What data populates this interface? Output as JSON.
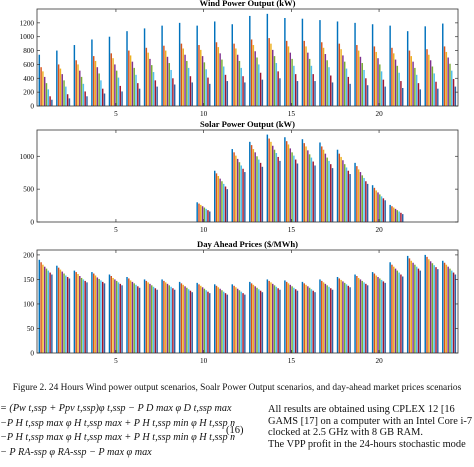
{
  "figure": {
    "caption": "Figure 2.   24 Hours Wind power output scenarios, Soalr Power Output scenarios, and day-ahead market prices scenarios"
  },
  "chart_data": [
    {
      "type": "bar",
      "title": "Wind Power Output (kW)",
      "xlabel": "",
      "ylabel": "",
      "ylim": [
        0,
        1400
      ],
      "xlim": [
        0.5,
        24.5
      ],
      "yticks": [
        0,
        200,
        400,
        600,
        800,
        1000,
        1200
      ],
      "xticks": [
        5,
        10,
        15,
        20
      ],
      "categories": [
        1,
        2,
        3,
        4,
        5,
        6,
        7,
        8,
        9,
        10,
        11,
        12,
        13,
        14,
        15,
        16,
        17,
        18,
        19,
        20,
        21,
        22,
        23,
        24
      ],
      "series": [
        {
          "color": "#0072BD",
          "values": [
            740,
            800,
            880,
            960,
            1000,
            1080,
            1120,
            1160,
            1200,
            1160,
            1220,
            1180,
            1300,
            1330,
            1270,
            1260,
            1240,
            1220,
            1200,
            1180,
            1160,
            1080,
            1150,
            1190
          ]
        },
        {
          "color": "#D95319",
          "values": [
            560,
            600,
            660,
            720,
            760,
            800,
            840,
            870,
            900,
            880,
            920,
            900,
            960,
            980,
            940,
            940,
            920,
            900,
            880,
            860,
            840,
            800,
            820,
            860
          ]
        },
        {
          "color": "#EDB120",
          "values": [
            500,
            540,
            600,
            650,
            690,
            730,
            770,
            800,
            830,
            810,
            850,
            830,
            880,
            900,
            860,
            860,
            840,
            820,
            800,
            780,
            760,
            720,
            740,
            780
          ]
        },
        {
          "color": "#7E2F8E",
          "values": [
            420,
            460,
            510,
            560,
            600,
            640,
            680,
            710,
            740,
            720,
            760,
            740,
            790,
            810,
            770,
            770,
            750,
            730,
            710,
            690,
            670,
            640,
            660,
            700
          ]
        },
        {
          "color": "#77AC30",
          "values": [
            330,
            370,
            420,
            470,
            510,
            550,
            590,
            620,
            650,
            630,
            670,
            650,
            700,
            720,
            680,
            680,
            660,
            640,
            620,
            600,
            580,
            550,
            570,
            610
          ]
        },
        {
          "color": "#4DBEEE",
          "values": [
            240,
            280,
            320,
            370,
            410,
            450,
            490,
            520,
            550,
            530,
            570,
            550,
            600,
            620,
            580,
            580,
            560,
            540,
            520,
            500,
            480,
            450,
            470,
            510
          ]
        },
        {
          "color": "#A2142F",
          "values": [
            140,
            170,
            210,
            250,
            290,
            330,
            370,
            400,
            430,
            410,
            450,
            430,
            480,
            500,
            460,
            460,
            440,
            420,
            400,
            380,
            360,
            330,
            350,
            390
          ]
        },
        {
          "color": "#2b63a8",
          "values": [
            90,
            110,
            140,
            180,
            210,
            250,
            280,
            310,
            340,
            320,
            360,
            340,
            380,
            400,
            360,
            360,
            340,
            320,
            300,
            280,
            260,
            240,
            250,
            280
          ]
        }
      ]
    },
    {
      "type": "bar",
      "title": "Solar Power Output (kW)",
      "xlabel": "",
      "ylabel": "",
      "ylim": [
        0,
        1400
      ],
      "xlim": [
        0.5,
        24.5
      ],
      "yticks": [
        0,
        500,
        1000
      ],
      "xticks": [
        5,
        10,
        15,
        20
      ],
      "categories": [
        1,
        2,
        3,
        4,
        5,
        6,
        7,
        8,
        9,
        10,
        11,
        12,
        13,
        14,
        15,
        16,
        17,
        18,
        19,
        20,
        21,
        22,
        23,
        24
      ],
      "series": [
        {
          "color": "#0072BD",
          "values": [
            0,
            0,
            0,
            0,
            0,
            0,
            0,
            0,
            0,
            300,
            780,
            1110,
            1220,
            1330,
            1290,
            1260,
            1210,
            1100,
            900,
            560,
            260,
            0,
            0,
            0
          ]
        },
        {
          "color": "#D95319",
          "values": [
            0,
            0,
            0,
            0,
            0,
            0,
            0,
            0,
            0,
            280,
            740,
            1060,
            1170,
            1270,
            1230,
            1200,
            1150,
            1040,
            850,
            520,
            240,
            0,
            0,
            0
          ]
        },
        {
          "color": "#EDB120",
          "values": [
            0,
            0,
            0,
            0,
            0,
            0,
            0,
            0,
            0,
            260,
            700,
            1010,
            1110,
            1220,
            1180,
            1150,
            1100,
            990,
            800,
            480,
            220,
            0,
            0,
            0
          ]
        },
        {
          "color": "#7E2F8E",
          "values": [
            0,
            0,
            0,
            0,
            0,
            0,
            0,
            0,
            0,
            240,
            660,
            960,
            1060,
            1160,
            1120,
            1090,
            1040,
            940,
            760,
            450,
            200,
            0,
            0,
            0
          ]
        },
        {
          "color": "#77AC30",
          "values": [
            0,
            0,
            0,
            0,
            0,
            0,
            0,
            0,
            0,
            220,
            620,
            910,
            1000,
            1100,
            1060,
            1030,
            980,
            880,
            710,
            420,
            180,
            0,
            0,
            0
          ]
        },
        {
          "color": "#4DBEEE",
          "values": [
            0,
            0,
            0,
            0,
            0,
            0,
            0,
            0,
            0,
            200,
            580,
            860,
            950,
            1050,
            1010,
            980,
            930,
            830,
            670,
            390,
            160,
            0,
            0,
            0
          ]
        },
        {
          "color": "#A2142F",
          "values": [
            0,
            0,
            0,
            0,
            0,
            0,
            0,
            0,
            0,
            180,
            540,
            810,
            900,
            990,
            950,
            920,
            880,
            780,
            620,
            360,
            140,
            0,
            0,
            0
          ]
        },
        {
          "color": "#2b63a8",
          "values": [
            0,
            0,
            0,
            0,
            0,
            0,
            0,
            0,
            0,
            160,
            500,
            760,
            840,
            930,
            890,
            860,
            820,
            730,
            580,
            330,
            120,
            0,
            0,
            0
          ]
        }
      ]
    },
    {
      "type": "bar",
      "title": "Day Ahead Prices ($/MWh)",
      "xlabel": "",
      "ylabel": "",
      "ylim": [
        0,
        210
      ],
      "xlim": [
        0.5,
        24.5
      ],
      "yticks": [
        0,
        50,
        100,
        150,
        200
      ],
      "xticks": [
        5,
        10,
        15,
        20
      ],
      "categories": [
        1,
        2,
        3,
        4,
        5,
        6,
        7,
        8,
        9,
        10,
        11,
        12,
        13,
        14,
        15,
        16,
        17,
        18,
        19,
        20,
        21,
        22,
        23,
        24
      ],
      "series": [
        {
          "color": "#0072BD",
          "values": [
            190,
            178,
            168,
            165,
            160,
            155,
            150,
            150,
            145,
            143,
            140,
            140,
            145,
            150,
            148,
            145,
            150,
            155,
            160,
            165,
            185,
            198,
            200,
            188
          ]
        },
        {
          "color": "#D95319",
          "values": [
            185,
            174,
            165,
            162,
            157,
            152,
            147,
            147,
            142,
            140,
            137,
            137,
            142,
            147,
            145,
            142,
            147,
            152,
            157,
            162,
            180,
            193,
            196,
            184
          ]
        },
        {
          "color": "#EDB120",
          "values": [
            180,
            170,
            161,
            158,
            153,
            148,
            144,
            144,
            139,
            137,
            134,
            134,
            139,
            144,
            142,
            139,
            144,
            149,
            153,
            158,
            176,
            188,
            191,
            180
          ]
        },
        {
          "color": "#7E2F8E",
          "values": [
            176,
            166,
            157,
            154,
            150,
            145,
            141,
            141,
            136,
            134,
            131,
            131,
            136,
            141,
            139,
            136,
            141,
            146,
            150,
            155,
            172,
            184,
            187,
            176
          ]
        },
        {
          "color": "#77AC30",
          "values": [
            172,
            162,
            153,
            151,
            147,
            142,
            138,
            138,
            133,
            131,
            128,
            128,
            133,
            138,
            136,
            133,
            138,
            143,
            147,
            152,
            168,
            180,
            183,
            172
          ]
        },
        {
          "color": "#4DBEEE",
          "values": [
            168,
            158,
            150,
            148,
            144,
            139,
            135,
            135,
            130,
            128,
            125,
            125,
            130,
            135,
            133,
            130,
            135,
            140,
            144,
            149,
            164,
            176,
            179,
            168
          ]
        },
        {
          "color": "#A2142F",
          "values": [
            164,
            155,
            147,
            145,
            141,
            136,
            132,
            132,
            127,
            125,
            122,
            122,
            127,
            132,
            130,
            127,
            132,
            137,
            141,
            146,
            160,
            172,
            175,
            164
          ]
        },
        {
          "color": "#2b63a8",
          "values": [
            160,
            152,
            144,
            142,
            138,
            133,
            129,
            129,
            124,
            122,
            119,
            119,
            124,
            129,
            127,
            124,
            129,
            134,
            138,
            143,
            156,
            168,
            171,
            160
          ]
        }
      ]
    }
  ],
  "equation": {
    "lines": [
      "= (Pw t,ssp + Ppv t,ssp)φ t,ssp − P D max φ D t,ssp max",
      "−P H t,ssp max φ H t,ssp max + P H t,ssp min φ H t,ssp min",
      "−P H t,ssp max φ H t,ssp max + P H t,ssp min φ H t,ssp min",
      "− P RA-ssp φ RA-ssp − P max φ max"
    ],
    "number": "(16)"
  },
  "body_text": {
    "lines": [
      "All results are obtained using CPLEX 12 [16",
      "GAMS [17] on a computer with an Intel Core i-7 p",
      "clocked at 2.5 GHz with 8 GB RAM.",
      "",
      "The VPP profit in the 24-hours stochastic mode"
    ]
  }
}
